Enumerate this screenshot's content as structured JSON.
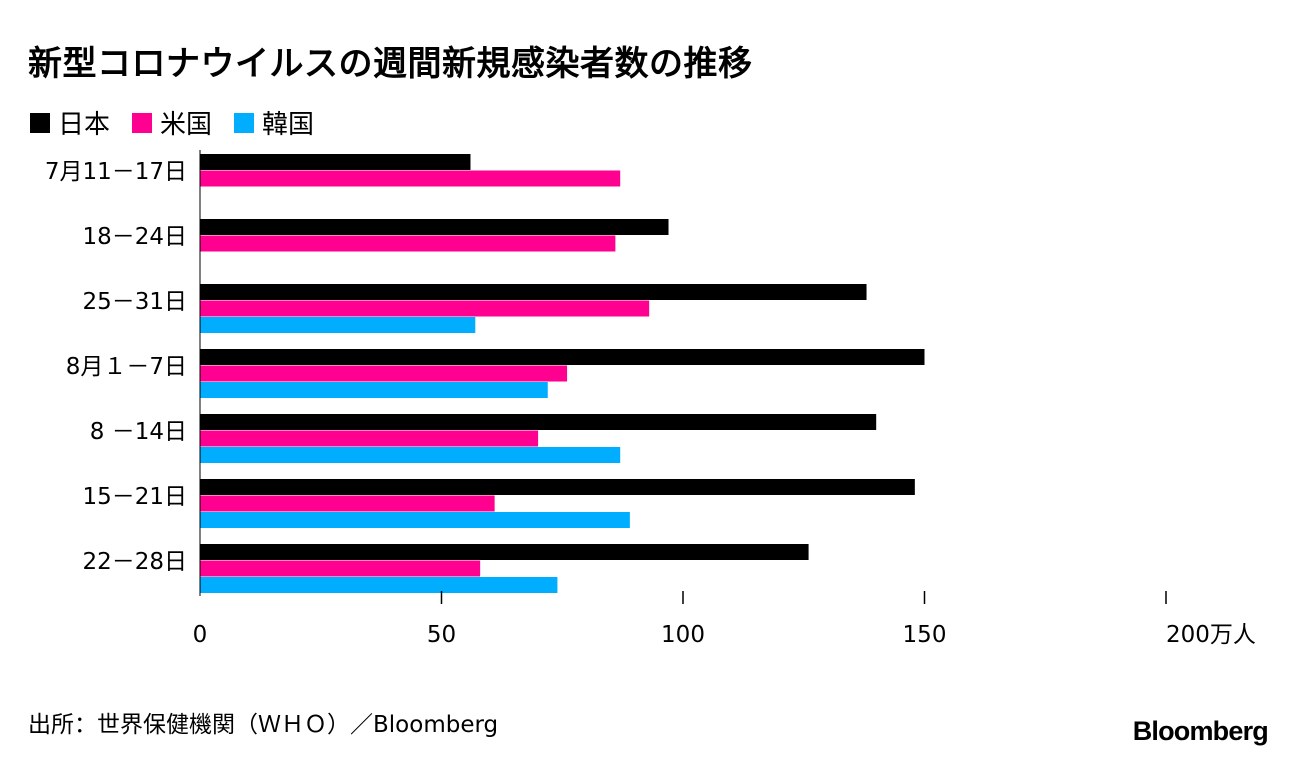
{
  "colors": {
    "japan": "#000000",
    "us": "#ff0090",
    "korea": "#00adff"
  },
  "chart_data": {
    "type": "bar",
    "orientation": "horizontal",
    "title": "新型コロナウイルスの週間新規感染者数の推移",
    "categories": [
      "7月11－17日",
      "18－24日",
      "25－31日",
      "8月１－7日",
      "8 －14日",
      "15－21日",
      "22－28日"
    ],
    "series": [
      {
        "name": "日本",
        "color": "#000000",
        "values": [
          56,
          97,
          138,
          150,
          140,
          148,
          126
        ]
      },
      {
        "name": "米国",
        "color": "#ff0090",
        "values": [
          87,
          86,
          93,
          76,
          70,
          61,
          58
        ]
      },
      {
        "name": "韓国",
        "color": "#00adff",
        "values": [
          null,
          null,
          57,
          72,
          87,
          89,
          74
        ]
      }
    ],
    "xlim": [
      0,
      200
    ],
    "xticks": [
      0,
      50,
      100,
      150,
      200
    ],
    "xtick_labels": [
      "0",
      "50",
      "100",
      "150",
      "200万人"
    ],
    "xlabel": "",
    "ylabel": "",
    "unit": "万人",
    "legend": "top-left",
    "grid": false
  },
  "footer": {
    "source": "出所：世界保健機関（ＷＨＯ）／Bloomberg",
    "brand": "Bloomberg"
  }
}
